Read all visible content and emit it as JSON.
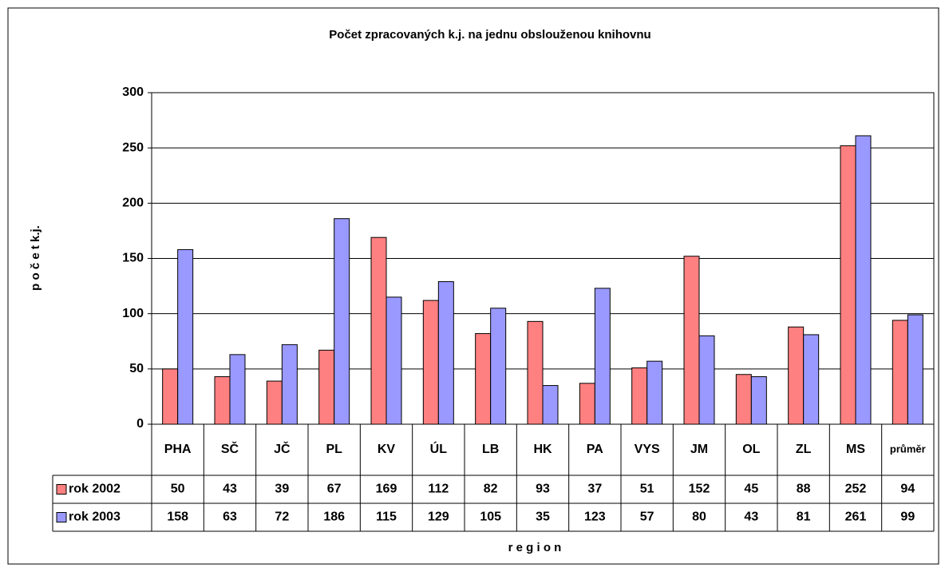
{
  "chart_data": {
    "type": "bar",
    "title": "Počet zpracovaných k.j. na jednu obslouženou  knihovnu",
    "y_label": "p o č e t   k.j.",
    "x_label": "r e g i o n",
    "categories": [
      "PHA",
      "SČ",
      "JČ",
      "PL",
      "KV",
      "ÚL",
      "LB",
      "HK",
      "PA",
      "VYS",
      "JM",
      "OL",
      "ZL",
      "MS",
      "průměr"
    ],
    "series": [
      {
        "name": "rok 2002",
        "color": "#ff8080",
        "values": [
          50,
          43,
          39,
          67,
          169,
          112,
          82,
          93,
          37,
          51,
          152,
          45,
          88,
          252,
          94
        ]
      },
      {
        "name": "rok 2003",
        "color": "#9999ff",
        "values": [
          158,
          63,
          72,
          186,
          115,
          129,
          105,
          35,
          123,
          57,
          80,
          43,
          81,
          261,
          99
        ]
      }
    ],
    "ylim": [
      0,
      300
    ],
    "yticks": [
      0,
      50,
      100,
      150,
      200,
      250,
      300
    ],
    "grid": true
  }
}
